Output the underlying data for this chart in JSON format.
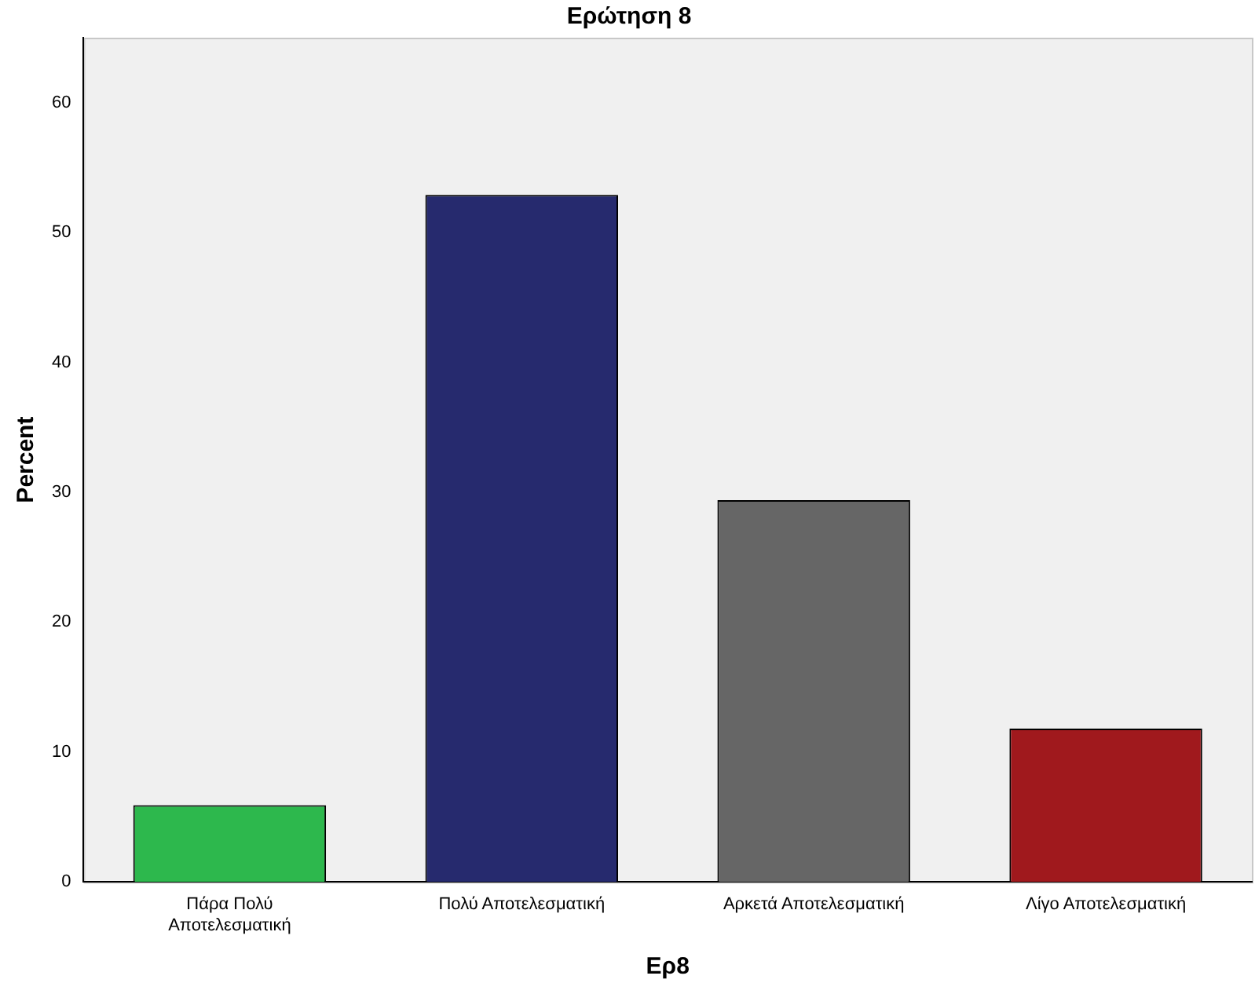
{
  "chart_data": {
    "type": "bar",
    "title": "Ερώτηση 8",
    "xlabel": "Ερ8",
    "ylabel": "Percent",
    "categories": [
      "Πάρα Πολύ\nΑποτελεσματική",
      "Πολύ Αποτελεσματική",
      "Αρκετά Αποτελεσματική",
      "Λίγο Αποτελεσματική"
    ],
    "values": [
      5.9,
      52.9,
      29.4,
      11.8
    ],
    "colors": [
      "#2db84d",
      "#262a6e",
      "#666666",
      "#a0191d"
    ],
    "ylim": [
      0,
      65
    ],
    "yticks": [
      0,
      10,
      20,
      30,
      40,
      50,
      60
    ],
    "grid": false,
    "legend": false
  }
}
